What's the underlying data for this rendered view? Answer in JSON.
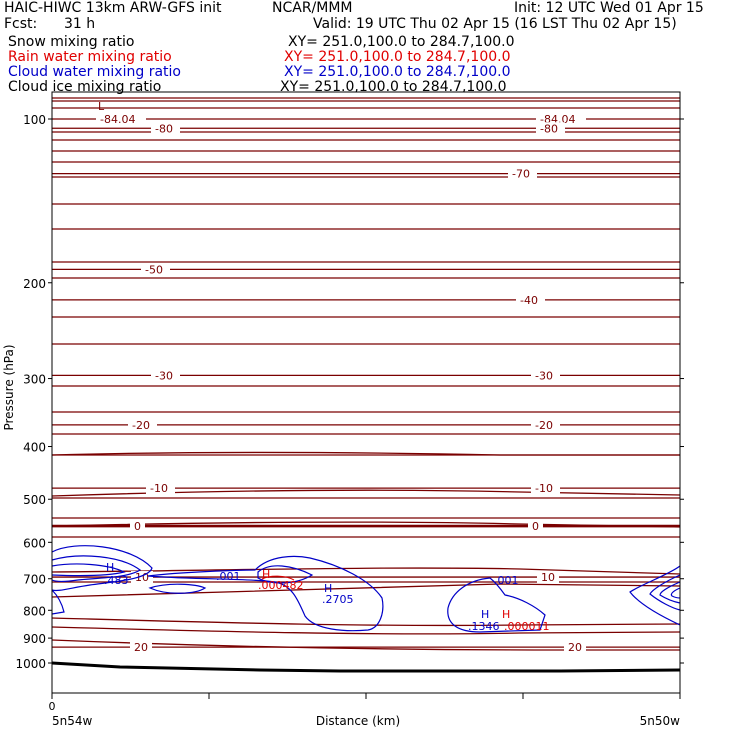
{
  "header": {
    "model": "HAIC-HIWC 13km ARW-GFS init",
    "org": "NCAR/MMM",
    "init": "Init: 12 UTC Wed 01 Apr 15",
    "fcst_label": "Fcst:",
    "fcst_value": "31 h",
    "valid": "Valid: 19 UTC Thu 02 Apr 15 (16 LST Thu 02 Apr 15)"
  },
  "fields": [
    {
      "name": "Snow mixing ratio",
      "xy": "XY= 251.0,100.0 to 284.7,100.0",
      "color": "#000000"
    },
    {
      "name": "Rain water mixing ratio",
      "xy": "XY= 251.0,100.0 to 284.7,100.0",
      "color": "#e00000"
    },
    {
      "name": "Cloud water mixing ratio",
      "xy": "XY= 251.0,100.0 to 284.7,100.0",
      "color": "#0000c8"
    },
    {
      "name": "Cloud ice mixing ratio",
      "xy": "XY= 251.0,100.0 to 284.7,100.0",
      "color": "#000000"
    }
  ],
  "colors": {
    "temperature": "#7a0000",
    "cloud_water": "#0000c8",
    "rain_water": "#e00000",
    "ground": "#000000",
    "axis": "#000000"
  },
  "chart_data": {
    "type": "line",
    "xlabel": "Distance (km)",
    "ylabel": "Pressure (hPa)",
    "y_scale": "log",
    "ylim": [
      1050,
      80
    ],
    "y_ticks": [
      100,
      200,
      300,
      400,
      500,
      600,
      700,
      800,
      900,
      1000
    ],
    "x_tick_label": "0",
    "left_end_label": "5n54w",
    "right_end_label": "5n50w",
    "temperature_contours": [
      {
        "label": "-84.04",
        "pressure": 100,
        "marker": "L"
      },
      {
        "label": "-80",
        "pressure": 104
      },
      {
        "label": "-70",
        "pressure": 126
      },
      {
        "label": "-50",
        "pressure": 189
      },
      {
        "label": "-40",
        "pressure": 215
      },
      {
        "label": "-30",
        "pressure": 296
      },
      {
        "label": "-20",
        "pressure": 365
      },
      {
        "label": "-10",
        "pressure": 477
      },
      {
        "label": "0",
        "pressure": 560
      },
      {
        "label": "10",
        "pressure": 695
      },
      {
        "label": "20",
        "pressure": 935
      }
    ],
    "cloud_water_labels": [
      ".483",
      ".001",
      ".2705",
      ".001",
      ".1346"
    ],
    "rain_water_labels": [
      ".000482",
      ".000011"
    ],
    "extrema_markers": {
      "cloud_water": [
        "H",
        "H",
        "H",
        "H"
      ],
      "rain_water": [
        "H",
        "H"
      ]
    }
  }
}
